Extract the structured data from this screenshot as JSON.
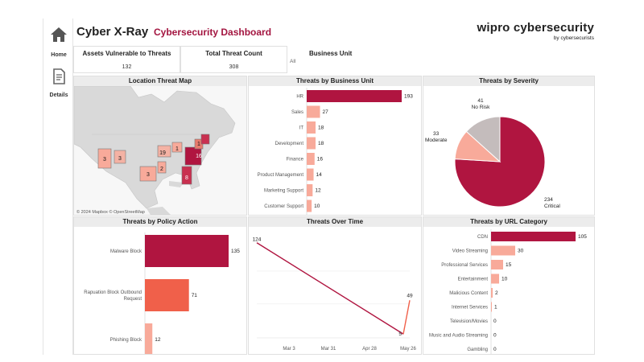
{
  "header": {
    "title": "Cyber X-Ray",
    "subtitle": "Cybersecurity Dashboard",
    "brand": "wipro cybersecurity",
    "brand_tagline": "by cybersecurists"
  },
  "nav": {
    "items": [
      {
        "label": "Home",
        "icon": "home-icon"
      },
      {
        "label": "Details",
        "icon": "document-icon"
      }
    ]
  },
  "kpis": [
    {
      "title": "Assets Vulnerable to Threats",
      "value": "132"
    },
    {
      "title": "Total Threat Count",
      "value": "308"
    }
  ],
  "filter": {
    "title": "Business Unit",
    "value": "All"
  },
  "map": {
    "title": "Location Threat Map",
    "attribution": "© 2024 Mapbox © OpenStreetMap",
    "markers": [
      "3",
      "3",
      "19",
      "2",
      "1",
      "16",
      "8",
      "1",
      "3"
    ]
  },
  "colors": {
    "dark": "#b01540",
    "mid": "#f0604a",
    "light": "#f8aa9a",
    "grey": "#c4bcbc",
    "critical": "#b01540"
  },
  "chart_data": [
    {
      "id": "business_unit",
      "type": "bar",
      "orientation": "horizontal",
      "title": "Threats by Business Unit",
      "categories": [
        "HR",
        "Sales",
        "IT",
        "Development",
        "Finance",
        "Product Management",
        "Marketing Support",
        "Customer Support"
      ],
      "values": [
        193,
        27,
        18,
        18,
        16,
        14,
        12,
        10
      ]
    },
    {
      "id": "severity",
      "type": "pie",
      "title": "Threats by Severity",
      "labels": [
        "Critical",
        "Moderate",
        "No Risk"
      ],
      "values": [
        234,
        33,
        41
      ]
    },
    {
      "id": "policy",
      "type": "bar",
      "orientation": "horizontal",
      "title": "Threats by Policy Action",
      "categories": [
        "Malware Block",
        "Rapuation Block Outbound Request",
        "Phishing Block"
      ],
      "values": [
        135,
        71,
        12
      ]
    },
    {
      "id": "time",
      "type": "line",
      "title": "Threats Over Time",
      "x_ticks": [
        "Mar 3",
        "Mar 31",
        "Apr 28",
        "May 26"
      ],
      "points": [
        {
          "label": "124",
          "value": 124
        },
        {
          "label": "5",
          "value": 5
        },
        {
          "label": "49",
          "value": 49
        }
      ]
    },
    {
      "id": "url",
      "type": "bar",
      "orientation": "horizontal",
      "title": "Threats by URL Category",
      "categories": [
        "CDN",
        "Video Streaming",
        "Professional Services",
        "Entertainment",
        "Malicious Content",
        "Internet Services",
        "Television/Movies",
        "Music and Audio Streaming",
        "Gambling"
      ],
      "values": [
        105,
        30,
        15,
        10,
        2,
        1,
        0,
        0,
        0
      ]
    }
  ]
}
